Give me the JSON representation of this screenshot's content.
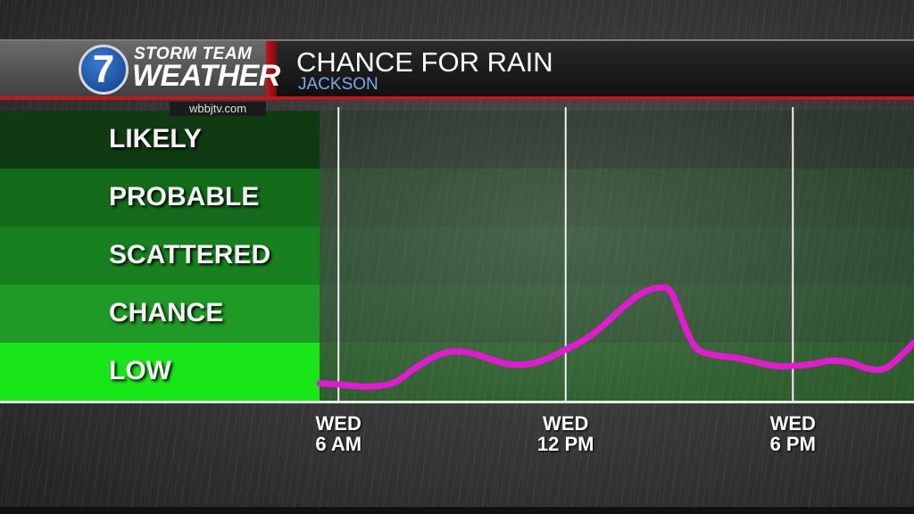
{
  "branding": {
    "logo_number": "7",
    "logo_line1": "STORM TEAM",
    "logo_line2": "WEATHER",
    "url": "wbbjtv.com"
  },
  "header": {
    "title": "CHANCE FOR RAIN",
    "subtitle": "JACKSON"
  },
  "colors": {
    "line": "#e619d2",
    "accent_red": "#c4161c",
    "bands": [
      "#0f3a12",
      "#146b1a",
      "#17811f",
      "#1f9a26",
      "#19e619"
    ]
  },
  "chart_data": {
    "type": "line",
    "title": "CHANCE FOR RAIN",
    "subtitle": "JACKSON",
    "categories": [
      "LIKELY",
      "PROBABLE",
      "SCATTERED",
      "CHANCE",
      "LOW"
    ],
    "x_ticks": [
      {
        "day": "WED",
        "time": "6 AM",
        "hour": 6
      },
      {
        "day": "WED",
        "time": "12 PM",
        "hour": 12
      },
      {
        "day": "WED",
        "time": "6 PM",
        "hour": 18
      }
    ],
    "xlim": [
      5.5,
      21.2
    ],
    "ylim": [
      0,
      5
    ],
    "series": [
      {
        "points": [
          [
            5.5,
            0.3
          ],
          [
            6.0,
            0.28
          ],
          [
            6.5,
            0.25
          ],
          [
            7.0,
            0.25
          ],
          [
            7.5,
            0.32
          ],
          [
            8.0,
            0.55
          ],
          [
            8.5,
            0.75
          ],
          [
            9.0,
            0.85
          ],
          [
            9.5,
            0.82
          ],
          [
            10.0,
            0.72
          ],
          [
            10.5,
            0.63
          ],
          [
            11.0,
            0.63
          ],
          [
            11.5,
            0.72
          ],
          [
            12.0,
            0.88
          ],
          [
            12.5,
            1.05
          ],
          [
            13.0,
            1.3
          ],
          [
            13.5,
            1.6
          ],
          [
            14.0,
            1.85
          ],
          [
            14.5,
            1.95
          ],
          [
            14.8,
            1.85
          ],
          [
            15.2,
            1.2
          ],
          [
            15.5,
            0.88
          ],
          [
            16.0,
            0.78
          ],
          [
            16.5,
            0.74
          ],
          [
            17.0,
            0.67
          ],
          [
            17.5,
            0.6
          ],
          [
            18.0,
            0.6
          ],
          [
            18.5,
            0.63
          ],
          [
            19.0,
            0.69
          ],
          [
            19.5,
            0.66
          ],
          [
            20.0,
            0.55
          ],
          [
            20.5,
            0.58
          ],
          [
            21.2,
            1.0
          ]
        ]
      }
    ],
    "grid": "vertical"
  }
}
